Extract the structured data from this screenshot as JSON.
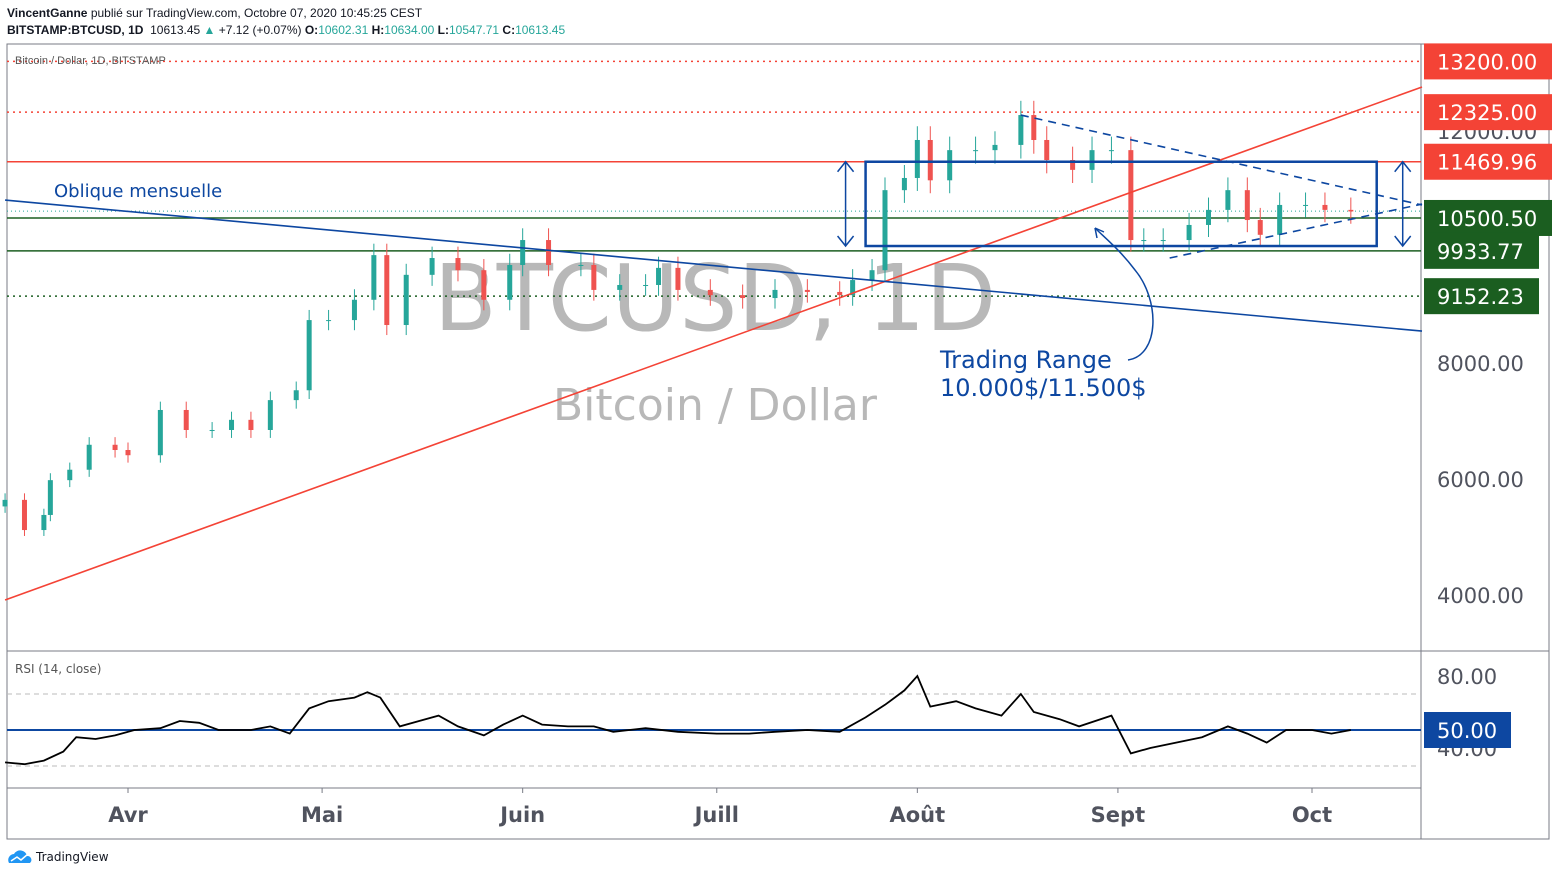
{
  "header": {
    "author": "VincentGanne",
    "published": "publié sur TradingView.com, Octobre 07, 2020 10:45:25 CEST",
    "symbol": "BITSTAMP:BTCUSD, 1D",
    "last": "10613.45",
    "change": "+7.12 (+0.07%)",
    "o_label": "O:",
    "o": "10602.31",
    "h_label": "H:",
    "h": "10634.00",
    "l_label": "L:",
    "l": "10547.71",
    "c_label": "C:",
    "c": "10613.45"
  },
  "legend": "Bitcoin / Dollar, 1D, BITSTAMP",
  "watermark": {
    "line1": "BTCUSD, 1D",
    "line2": "Bitcoin / Dollar"
  },
  "annotations": {
    "oblique": "Oblique mensuelle",
    "range1": "Trading Range",
    "range2": "10.000$/11.500$"
  },
  "rsi_label": "RSI (14, close)",
  "footer": "TradingView",
  "colors": {
    "up": "#26a69a",
    "down": "#ef5350",
    "red_label": "#f44336",
    "green_label": "#1b5e20",
    "blue": "#0d47a1",
    "trend_red": "#f44336"
  },
  "chart_data": {
    "type": "candlestick",
    "price_axis": {
      "ticks": [
        4000,
        6000,
        8000,
        12000
      ],
      "tick_labels": [
        "4000.00",
        "6000.00",
        "8000.00",
        "12000.00"
      ]
    },
    "time_axis": {
      "ticks": [
        "2020-04-01",
        "2020-05-01",
        "2020-06-01",
        "2020-07-01",
        "2020-08-01",
        "2020-09-01",
        "2020-10-01"
      ],
      "tick_labels": [
        "Avr",
        "Mai",
        "Juin",
        "Juill",
        "Août",
        "Sept",
        "Oct"
      ]
    },
    "closes": [
      [
        "2020-03-13",
        5640
      ],
      [
        "2020-03-16",
        5120
      ],
      [
        "2020-03-19",
        5380
      ],
      [
        "2020-03-20",
        5980
      ],
      [
        "2020-03-23",
        6160
      ],
      [
        "2020-03-26",
        6590
      ],
      [
        "2020-03-30",
        6500
      ],
      [
        "2020-04-01",
        6410
      ],
      [
        "2020-04-06",
        7190
      ],
      [
        "2020-04-10",
        6845
      ],
      [
        "2020-04-14",
        6845
      ],
      [
        "2020-04-17",
        7020
      ],
      [
        "2020-04-20",
        6845
      ],
      [
        "2020-04-23",
        7360
      ],
      [
        "2020-04-27",
        7530
      ],
      [
        "2020-04-29",
        8740
      ],
      [
        "2020-05-02",
        8740
      ],
      [
        "2020-05-06",
        9090
      ],
      [
        "2020-05-09",
        9860
      ],
      [
        "2020-05-11",
        8655
      ],
      [
        "2020-05-14",
        9520
      ],
      [
        "2020-05-18",
        9810
      ],
      [
        "2020-05-22",
        9600
      ],
      [
        "2020-05-26",
        9090
      ],
      [
        "2020-05-30",
        9690
      ],
      [
        "2020-06-01",
        10120
      ],
      [
        "2020-06-05",
        9690
      ],
      [
        "2020-06-10",
        9690
      ],
      [
        "2020-06-12",
        9260
      ],
      [
        "2020-06-16",
        9345
      ],
      [
        "2020-06-20",
        9345
      ],
      [
        "2020-06-22",
        9640
      ],
      [
        "2020-06-25",
        9260
      ],
      [
        "2020-06-30",
        9170
      ],
      [
        "2020-07-05",
        9120
      ],
      [
        "2020-07-10",
        9260
      ],
      [
        "2020-07-15",
        9225
      ],
      [
        "2020-07-20",
        9170
      ],
      [
        "2020-07-22",
        9430
      ],
      [
        "2020-07-25",
        9600
      ],
      [
        "2020-07-27",
        10980
      ],
      [
        "2020-07-30",
        11190
      ],
      [
        "2020-08-01",
        11845
      ],
      [
        "2020-08-03",
        11150
      ],
      [
        "2020-08-06",
        11670
      ],
      [
        "2020-08-10",
        11670
      ],
      [
        "2020-08-13",
        11760
      ],
      [
        "2020-08-17",
        12275
      ],
      [
        "2020-08-19",
        11845
      ],
      [
        "2020-08-21",
        11500
      ],
      [
        "2020-08-25",
        11330
      ],
      [
        "2020-08-28",
        11670
      ],
      [
        "2020-08-31",
        11670
      ],
      [
        "2020-09-03",
        10120
      ],
      [
        "2020-09-05",
        10120
      ],
      [
        "2020-09-08",
        10120
      ],
      [
        "2020-09-12",
        10380
      ],
      [
        "2020-09-15",
        10640
      ],
      [
        "2020-09-18",
        10980
      ],
      [
        "2020-09-21",
        10465
      ],
      [
        "2020-09-23",
        10210
      ],
      [
        "2020-09-26",
        10725
      ],
      [
        "2020-09-30",
        10725
      ],
      [
        "2020-10-03",
        10640
      ],
      [
        "2020-10-07",
        10613
      ]
    ],
    "levels": [
      {
        "price": 13200,
        "label": "13200.00",
        "style": "dotted",
        "color": "red"
      },
      {
        "price": 12325,
        "label": "12325.00",
        "style": "dotted",
        "color": "red"
      },
      {
        "price": 11469.96,
        "label": "11469.96",
        "style": "solid",
        "color": "red"
      },
      {
        "price": 10500.5,
        "label": "10500.50",
        "style": "solid",
        "color": "green"
      },
      {
        "price": 9933.77,
        "label": "9933.77",
        "style": "solid",
        "color": "green"
      },
      {
        "price": 9152.23,
        "label": "9152.23",
        "style": "dotted",
        "color": "green"
      }
    ],
    "trendlines": [
      {
        "name": "support",
        "from": [
          "2020-03-13",
          3914
        ],
        "to": [
          "2020-10-18",
          12759
        ],
        "color": "red"
      },
      {
        "name": "oblique-mensuelle",
        "from": [
          "2020-03-13",
          10810
        ],
        "to": [
          "2020-10-18",
          8550
        ],
        "color": "blue"
      },
      {
        "name": "triangle-top",
        "from": [
          "2020-08-17",
          12275
        ],
        "to": [
          "2020-10-18",
          10724
        ],
        "dashed": true
      },
      {
        "name": "triangle-bottom",
        "from": [
          "2020-09-09",
          9810
        ],
        "to": [
          "2020-10-18",
          10740
        ],
        "dashed": true
      }
    ],
    "range_box": {
      "from": "2020-07-24",
      "to": "2020-10-11",
      "high": 11470,
      "low": 10017
    },
    "rsi": {
      "axis_labels": [
        "80.00",
        "40.00"
      ],
      "mid_label": "50.00",
      "bands": [
        70,
        30
      ],
      "values": [
        [
          "2020-03-13",
          32
        ],
        [
          "2020-03-16",
          31
        ],
        [
          "2020-03-19",
          33
        ],
        [
          "2020-03-22",
          38
        ],
        [
          "2020-03-24",
          46
        ],
        [
          "2020-03-27",
          45
        ],
        [
          "2020-03-30",
          47
        ],
        [
          "2020-04-02",
          50
        ],
        [
          "2020-04-06",
          51
        ],
        [
          "2020-04-09",
          55
        ],
        [
          "2020-04-12",
          54
        ],
        [
          "2020-04-15",
          50
        ],
        [
          "2020-04-20",
          50
        ],
        [
          "2020-04-23",
          52
        ],
        [
          "2020-04-26",
          48
        ],
        [
          "2020-04-29",
          62
        ],
        [
          "2020-05-02",
          66
        ],
        [
          "2020-05-06",
          68
        ],
        [
          "2020-05-08",
          71
        ],
        [
          "2020-05-10",
          68
        ],
        [
          "2020-05-13",
          52
        ],
        [
          "2020-05-16",
          55
        ],
        [
          "2020-05-19",
          58
        ],
        [
          "2020-05-22",
          52
        ],
        [
          "2020-05-26",
          47
        ],
        [
          "2020-05-29",
          53
        ],
        [
          "2020-06-01",
          58
        ],
        [
          "2020-06-04",
          53
        ],
        [
          "2020-06-08",
          52
        ],
        [
          "2020-06-12",
          52
        ],
        [
          "2020-06-15",
          49
        ],
        [
          "2020-06-20",
          51
        ],
        [
          "2020-06-25",
          49
        ],
        [
          "2020-07-01",
          48
        ],
        [
          "2020-07-06",
          48
        ],
        [
          "2020-07-10",
          49
        ],
        [
          "2020-07-15",
          50
        ],
        [
          "2020-07-20",
          49
        ],
        [
          "2020-07-24",
          57
        ],
        [
          "2020-07-27",
          64
        ],
        [
          "2020-07-30",
          72
        ],
        [
          "2020-08-01",
          80
        ],
        [
          "2020-08-03",
          63
        ],
        [
          "2020-08-07",
          66
        ],
        [
          "2020-08-10",
          62
        ],
        [
          "2020-08-14",
          58
        ],
        [
          "2020-08-17",
          70
        ],
        [
          "2020-08-19",
          60
        ],
        [
          "2020-08-23",
          56
        ],
        [
          "2020-08-26",
          52
        ],
        [
          "2020-08-31",
          58
        ],
        [
          "2020-09-03",
          37
        ],
        [
          "2020-09-06",
          40
        ],
        [
          "2020-09-10",
          43
        ],
        [
          "2020-09-14",
          46
        ],
        [
          "2020-09-18",
          52
        ],
        [
          "2020-09-21",
          48
        ],
        [
          "2020-09-24",
          43
        ],
        [
          "2020-09-27",
          50
        ],
        [
          "2020-10-01",
          50
        ],
        [
          "2020-10-04",
          48
        ],
        [
          "2020-10-07",
          50
        ]
      ]
    }
  }
}
